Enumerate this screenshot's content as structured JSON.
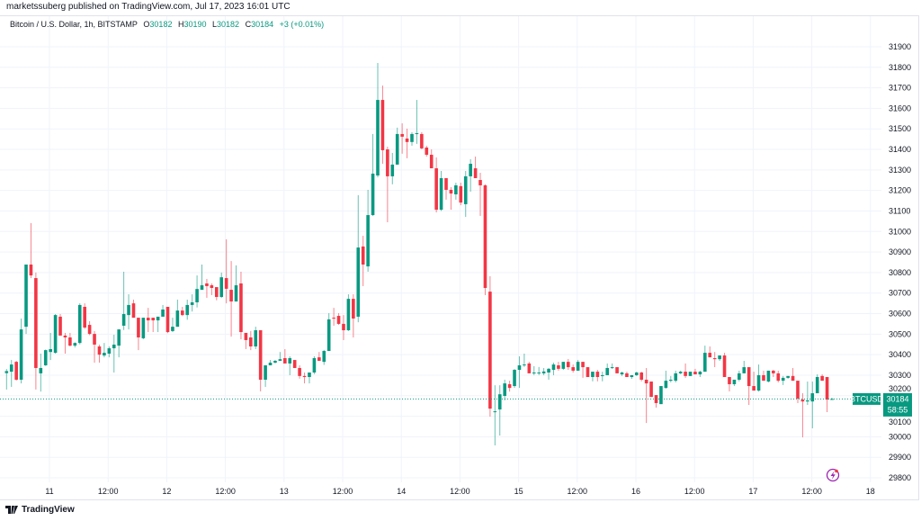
{
  "publisher_line": "marketssuberg published on TradingView.com, Jul 17, 2023 16:01 UTC",
  "legend": {
    "symbol_desc": "Bitcoin / U.S. Dollar, 1h, BITSTAMP",
    "o_label": "O",
    "o_value": "30182",
    "h_label": "H",
    "h_value": "30190",
    "l_label": "L",
    "l_value": "30182",
    "c_label": "C",
    "c_value": "30184",
    "change": "+3 (+0.01%)"
  },
  "last_price": {
    "symbol_tag": "BTCUSD",
    "price": "30184",
    "countdown": "58:55",
    "value": 30184
  },
  "footer": {
    "logo_text": "TradingView"
  },
  "colors": {
    "up": "#089981",
    "down": "#f23645",
    "grid": "#f0f3fa",
    "alert_icon": "#9c27b0"
  },
  "icons": {
    "alert": "lightning-icon",
    "logo": "tradingview-logo-icon"
  },
  "chart_data": {
    "type": "candlestick",
    "symbol": "BTCUSD",
    "interval": "1h",
    "ylim": [
      29750,
      31950
    ],
    "y_ticks": [
      29800,
      29900,
      30000,
      30100,
      30200,
      30300,
      30400,
      30500,
      30600,
      30700,
      30800,
      30900,
      31000,
      31100,
      31200,
      31300,
      31400,
      31500,
      31600,
      31700,
      31800,
      31900
    ],
    "x_tick_labels": [
      "11",
      "12:00",
      "12",
      "12:00",
      "13",
      "12:00",
      "14",
      "12:00",
      "15",
      "12:00",
      "16",
      "12:00",
      "17",
      "12:00",
      "18"
    ],
    "grid": true,
    "candles_ohlc": [
      [
        30310,
        30330,
        30230,
        30320
      ],
      [
        30317,
        30374,
        30243,
        30352
      ],
      [
        30365,
        30370,
        30273,
        30278
      ],
      [
        30278,
        30576,
        30260,
        30523
      ],
      [
        30536,
        30839,
        30501,
        30839
      ],
      [
        30839,
        31041,
        30773,
        30786
      ],
      [
        30773,
        30800,
        30230,
        30335
      ],
      [
        30309,
        30405,
        30220,
        30335
      ],
      [
        30348,
        30425,
        30345,
        30422
      ],
      [
        30413,
        30506,
        30374,
        30427
      ],
      [
        30409,
        30598,
        30405,
        30593
      ],
      [
        30585,
        30598,
        30493,
        30493
      ],
      [
        30493,
        30506,
        30405,
        30484
      ],
      [
        30484,
        30506,
        30440,
        30444
      ],
      [
        30444,
        30460,
        30435,
        30457
      ],
      [
        30457,
        30650,
        30450,
        30642
      ],
      [
        30633,
        30650,
        30525,
        30532
      ],
      [
        30545,
        30563,
        30495,
        30501
      ],
      [
        30501,
        30515,
        30361,
        30449
      ],
      [
        30440,
        30449,
        30361,
        30400
      ],
      [
        30396,
        30457,
        30387,
        30409
      ],
      [
        30405,
        30440,
        30387,
        30431
      ],
      [
        30431,
        30497,
        30313,
        30449
      ],
      [
        30444,
        30523,
        30387,
        30523
      ],
      [
        30541,
        30804,
        30520,
        30598
      ],
      [
        30593,
        30694,
        30523,
        30642
      ],
      [
        30650,
        30668,
        30580,
        30580
      ],
      [
        30580,
        30580,
        30422,
        30484
      ],
      [
        30480,
        30580,
        30475,
        30580
      ],
      [
        30580,
        30628,
        30510,
        30567
      ],
      [
        30580,
        30580,
        30510,
        30567
      ],
      [
        30567,
        30585,
        30510,
        30585
      ],
      [
        30585,
        30642,
        30585,
        30620
      ],
      [
        30633,
        30633,
        30505,
        30510
      ],
      [
        30515,
        30580,
        30510,
        30536
      ],
      [
        30536,
        30668,
        30536,
        30615
      ],
      [
        30615,
        30633,
        30588,
        30593
      ],
      [
        30593,
        30668,
        30570,
        30642
      ],
      [
        30642,
        30694,
        30610,
        30655
      ],
      [
        30655,
        30786,
        30630,
        30720
      ],
      [
        30716,
        30839,
        30716,
        30738
      ],
      [
        30747,
        30769,
        30677,
        30734
      ],
      [
        30738,
        30747,
        30690,
        30725
      ],
      [
        30729,
        30729,
        30665,
        30681
      ],
      [
        30681,
        30800,
        30677,
        30777
      ],
      [
        30773,
        30962,
        30650,
        30721
      ],
      [
        30716,
        30856,
        30488,
        30659
      ],
      [
        30659,
        30835,
        30659,
        30738
      ],
      [
        30747,
        30804,
        30475,
        30510
      ],
      [
        30506,
        30506,
        30427,
        30471
      ],
      [
        30484,
        30515,
        30422,
        30440
      ],
      [
        30440,
        30536,
        30427,
        30519
      ],
      [
        30519,
        30519,
        30221,
        30278
      ],
      [
        30278,
        30348,
        30243,
        30348
      ],
      [
        30348,
        30374,
        30348,
        30361
      ],
      [
        30361,
        30374,
        30357,
        30370
      ],
      [
        30370,
        30413,
        30370,
        30378
      ],
      [
        30383,
        30427,
        30357,
        30357
      ],
      [
        30357,
        30392,
        30300,
        30383
      ],
      [
        30374,
        30374,
        30335,
        30335
      ],
      [
        30335,
        30348,
        30283,
        30296
      ],
      [
        30296,
        30313,
        30260,
        30291
      ],
      [
        30291,
        30313,
        30260,
        30313
      ],
      [
        30313,
        30392,
        30305,
        30383
      ],
      [
        30387,
        30413,
        30370,
        30370
      ],
      [
        30365,
        30423,
        30350,
        30418
      ],
      [
        30418,
        30602,
        30418,
        30572
      ],
      [
        30580,
        30628,
        30541,
        30576
      ],
      [
        30589,
        30602,
        30545,
        30550
      ],
      [
        30550,
        30593,
        30471,
        30519
      ],
      [
        30519,
        30694,
        30515,
        30672
      ],
      [
        30672,
        30694,
        30484,
        30576
      ],
      [
        30585,
        31177,
        30558,
        30922
      ],
      [
        30927,
        30979,
        30734,
        30839
      ],
      [
        30830,
        31203,
        30804,
        31080
      ],
      [
        31080,
        31475,
        31076,
        31282
      ],
      [
        31273,
        31821,
        31264,
        31641
      ],
      [
        31641,
        31711,
        31330,
        31396
      ],
      [
        31400,
        31413,
        31045,
        31269
      ],
      [
        31269,
        31383,
        31230,
        31326
      ],
      [
        31326,
        31506,
        31326,
        31475
      ],
      [
        31475,
        31527,
        31379,
        31462
      ],
      [
        31453,
        31501,
        31357,
        31436
      ],
      [
        31436,
        31484,
        31418,
        31475
      ],
      [
        31475,
        31641,
        31427,
        31479
      ],
      [
        31475,
        31484,
        31400,
        31405
      ],
      [
        31409,
        31418,
        31365,
        31374
      ],
      [
        31374,
        31400,
        31308,
        31308
      ],
      [
        31308,
        31361,
        31093,
        31106
      ],
      [
        31106,
        31295,
        31100,
        31260
      ],
      [
        31260,
        31260,
        31155,
        31203
      ],
      [
        31203,
        31216,
        31106,
        31185
      ],
      [
        31181,
        31238,
        31155,
        31225
      ],
      [
        31221,
        31238,
        31128,
        31141
      ],
      [
        31133,
        31295,
        31071,
        31269
      ],
      [
        31269,
        31352,
        31194,
        31330
      ],
      [
        31308,
        31365,
        31260,
        31260
      ],
      [
        31251,
        31286,
        31076,
        31225
      ],
      [
        31225,
        31230,
        30690,
        30725
      ],
      [
        30707,
        30782,
        30098,
        30137
      ],
      [
        30120,
        30251,
        29958,
        30124
      ],
      [
        30133,
        30251,
        30006,
        30207
      ],
      [
        30199,
        30278,
        30177,
        30260
      ],
      [
        30256,
        30273,
        30220,
        30238
      ],
      [
        30247,
        30330,
        30238,
        30326
      ],
      [
        30326,
        30392,
        30238,
        30348
      ],
      [
        30348,
        30405,
        30340,
        30352
      ],
      [
        30357,
        30365,
        30309,
        30309
      ],
      [
        30309,
        30344,
        30300,
        30313
      ],
      [
        30309,
        30340,
        30300,
        30313
      ],
      [
        30309,
        30335,
        30300,
        30318
      ],
      [
        30313,
        30335,
        30278,
        30331
      ],
      [
        30326,
        30361,
        30300,
        30352
      ],
      [
        30348,
        30365,
        30322,
        30331
      ],
      [
        30331,
        30365,
        30326,
        30365
      ],
      [
        30365,
        30379,
        30326,
        30339
      ],
      [
        30339,
        30352,
        30313,
        30322
      ],
      [
        30322,
        30374,
        30322,
        30365
      ],
      [
        30365,
        30365,
        30287,
        30339
      ],
      [
        30339,
        30339,
        30291,
        30291
      ],
      [
        30291,
        30317,
        30270,
        30317
      ],
      [
        30317,
        30326,
        30270,
        30291
      ],
      [
        30296,
        30317,
        30270,
        30300
      ],
      [
        30300,
        30357,
        30300,
        30335
      ],
      [
        30335,
        30357,
        30330,
        30339
      ],
      [
        30339,
        30339,
        30309,
        30309
      ],
      [
        30304,
        30317,
        30296,
        30313
      ],
      [
        30309,
        30317,
        30291,
        30291
      ],
      [
        30291,
        30300,
        30282,
        30300
      ],
      [
        30300,
        30317,
        30296,
        30313
      ],
      [
        30313,
        30317,
        30270,
        30278
      ],
      [
        30278,
        30335,
        30067,
        30260
      ],
      [
        30269,
        30269,
        30194,
        30194
      ],
      [
        30203,
        30203,
        30142,
        30164
      ],
      [
        30159,
        30247,
        30159,
        30247
      ],
      [
        30238,
        30322,
        30234,
        30273
      ],
      [
        30273,
        30296,
        30265,
        30278
      ],
      [
        30273,
        30322,
        30265,
        30309
      ],
      [
        30309,
        30322,
        30305,
        30317
      ],
      [
        30317,
        30357,
        30287,
        30296
      ],
      [
        30296,
        30317,
        30296,
        30317
      ],
      [
        30317,
        30331,
        30304,
        30304
      ],
      [
        30304,
        30322,
        30291,
        30317
      ],
      [
        30317,
        30444,
        30317,
        30409
      ],
      [
        30409,
        30440,
        30387,
        30387
      ],
      [
        30383,
        30413,
        30339,
        30378
      ],
      [
        30378,
        30396,
        30370,
        30396
      ],
      [
        30396,
        30409,
        30291,
        30291
      ],
      [
        30291,
        30291,
        30221,
        30256
      ],
      [
        30256,
        30278,
        30247,
        30278
      ],
      [
        30278,
        30322,
        30270,
        30309
      ],
      [
        30309,
        30370,
        30309,
        30339
      ],
      [
        30339,
        30339,
        30155,
        30247
      ],
      [
        30247,
        30317,
        30225,
        30225
      ],
      [
        30225,
        30352,
        30220,
        30300
      ],
      [
        30300,
        30322,
        30273,
        30273
      ],
      [
        30269,
        30322,
        30265,
        30322
      ],
      [
        30322,
        30326,
        30291,
        30309
      ],
      [
        30309,
        30322,
        30265,
        30273
      ],
      [
        30273,
        30296,
        30252,
        30287
      ],
      [
        30287,
        30296,
        30282,
        30296
      ],
      [
        30296,
        30335,
        30273,
        30273
      ],
      [
        30273,
        30273,
        30164,
        30186
      ],
      [
        30181,
        30212,
        29997,
        30172
      ],
      [
        30172,
        30269,
        30155,
        30177
      ],
      [
        30172,
        30269,
        30041,
        30212
      ],
      [
        30212,
        30304,
        30212,
        30291
      ],
      [
        30296,
        30304,
        30273,
        30273
      ],
      [
        30291,
        30291,
        30120,
        30181
      ],
      [
        30182,
        30190,
        30182,
        30184
      ]
    ]
  }
}
